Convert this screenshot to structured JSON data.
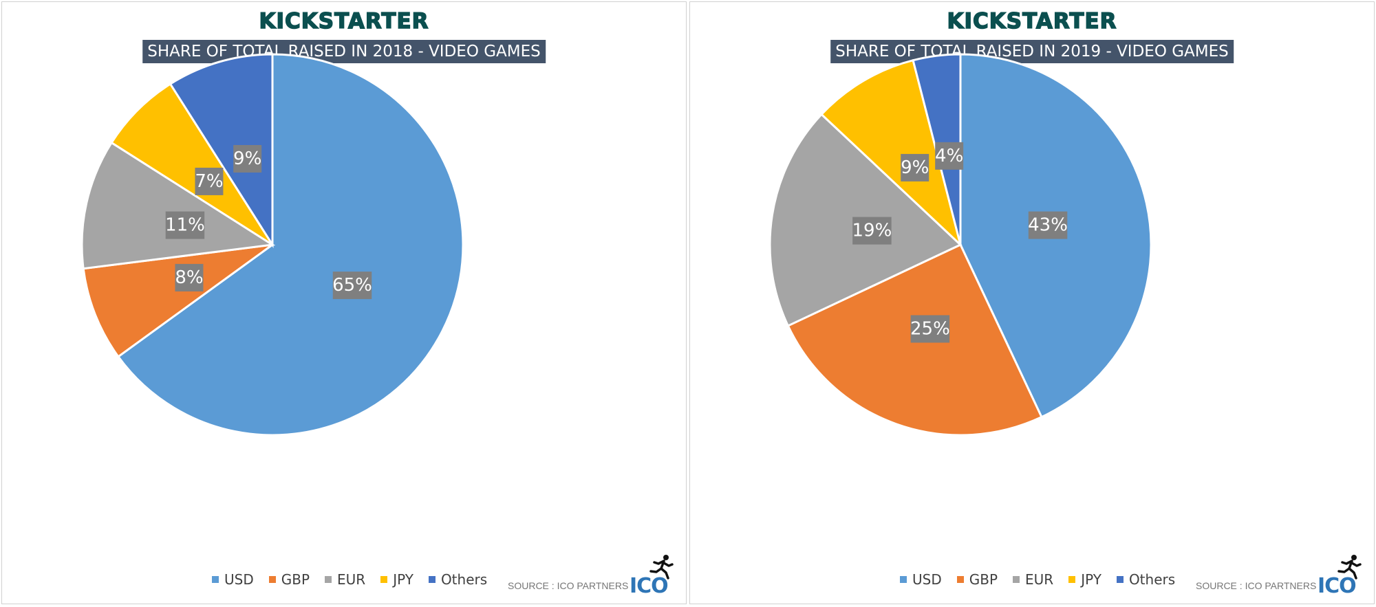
{
  "colors": {
    "USD": "#5b9bd5",
    "GBP": "#ed7d31",
    "EUR": "#a5a5a5",
    "JPY": "#ffc000",
    "Others": "#4472c4",
    "label_bg": "#7f7f7f",
    "title_bg": "#44546a",
    "brand": "#0b4f4f",
    "ico_blue": "#2e75b6"
  },
  "charts": [
    {
      "brand": "KICKSTARTER",
      "title": "SHARE OF TOTAL RAISED IN 2018 - VIDEO GAMES",
      "source": "SOURCE : ICO PARTNERS",
      "logo_text": "ICO"
    },
    {
      "brand": "KICKSTARTER",
      "title": "SHARE OF TOTAL RAISED IN 2019 - VIDEO GAMES",
      "source": "SOURCE : ICO PARTNERS",
      "logo_text": "ICO"
    }
  ],
  "chart_data": [
    {
      "type": "pie",
      "title": "SHARE OF TOTAL RAISED IN 2018 - VIDEO GAMES",
      "categories": [
        "USD",
        "GBP",
        "EUR",
        "JPY",
        "Others"
      ],
      "values": [
        65,
        8,
        11,
        7,
        9
      ],
      "labels": [
        "65%",
        "8%",
        "11%",
        "7%",
        "9%"
      ],
      "unit": "%",
      "legend_position": "bottom"
    },
    {
      "type": "pie",
      "title": "SHARE OF TOTAL RAISED IN 2019 - VIDEO GAMES",
      "categories": [
        "USD",
        "GBP",
        "EUR",
        "JPY",
        "Others"
      ],
      "values": [
        43,
        25,
        19,
        9,
        4
      ],
      "labels": [
        "43%",
        "25%",
        "19%",
        "9%",
        "4%"
      ],
      "unit": "%",
      "legend_position": "bottom"
    }
  ]
}
